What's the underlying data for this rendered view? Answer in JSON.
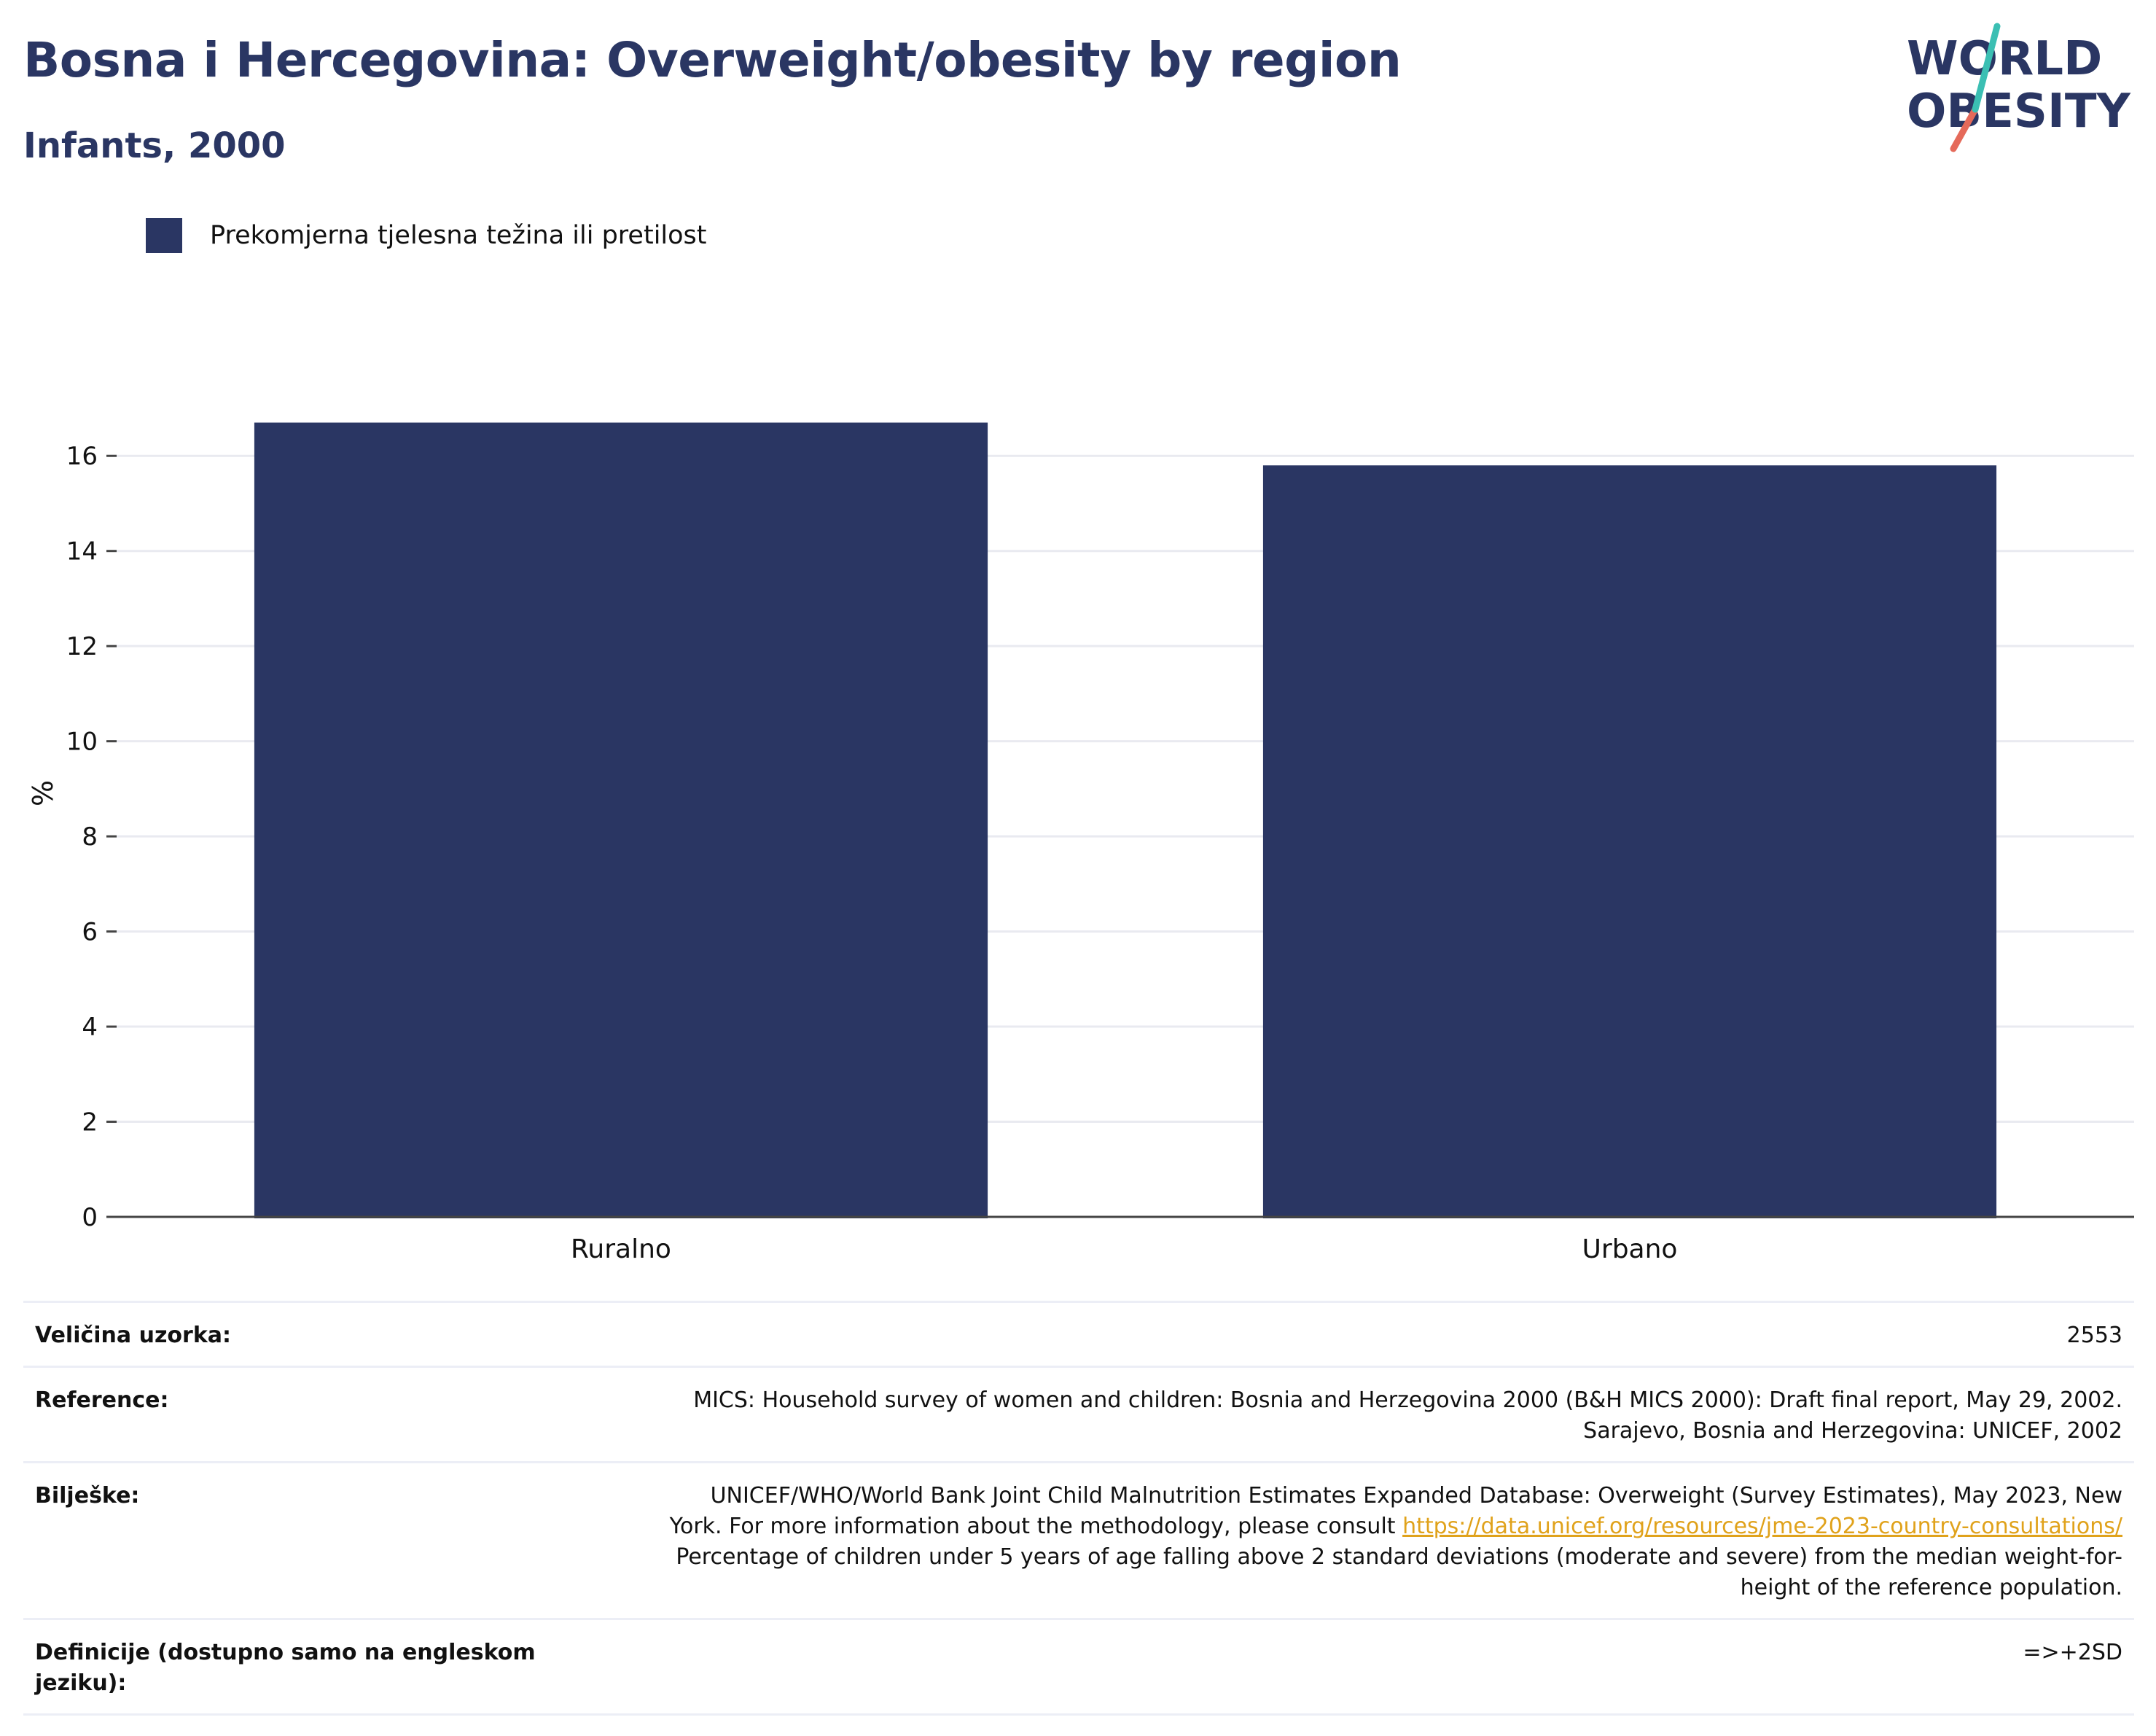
{
  "header": {
    "title": "Bosna i Hercegovina: Overweight/obesity by region",
    "subtitle": "Infants, 2000"
  },
  "logo": {
    "line1": "WORLD",
    "line2": "OBESITY"
  },
  "legend": {
    "label": "Prekomjerna tjelesna težina ili pretilost",
    "color": "#2a3663"
  },
  "chart_data": {
    "type": "bar",
    "categories": [
      "Ruralno",
      "Urbano"
    ],
    "series": [
      {
        "name": "Prekomjerna tjelesna težina ili pretilost",
        "values": [
          16.7,
          15.8
        ],
        "color": "#2a3663"
      }
    ],
    "ylabel": "%",
    "xlabel": "",
    "ylim": [
      0,
      17
    ],
    "yticks": [
      0,
      2,
      4,
      6,
      8,
      10,
      12,
      14,
      16
    ],
    "grid": true,
    "legend": "top-left"
  },
  "info": {
    "sample_size": {
      "label": "Veličina uzorka:",
      "value": "2553"
    },
    "reference": {
      "label": "Reference:",
      "line1": "MICS: Household survey of women and children: Bosnia and Herzegovina 2000 (B&H MICS 2000): Draft final report, May 29, 2002.",
      "line2": "Sarajevo, Bosnia and Herzegovina: UNICEF, 2002"
    },
    "notes": {
      "label": "Bilješke:",
      "line1": "UNICEF/WHO/World Bank Joint Child Malnutrition Estimates Expanded Database: Overweight (Survey Estimates), May 2023, New",
      "line2_prefix": "York. For more information about the methodology, please consult ",
      "link": "https://data.unicef.org/resources/jme-2023-country-consultations/",
      "line3": "Percentage of children under 5 years of age falling above 2 standard deviations (moderate and severe) from the median weight-for-",
      "line4": "height of the reference population."
    },
    "definitions": {
      "label": "Definicije (dostupno samo na engleskom jeziku):",
      "value": "=>+2SD"
    }
  }
}
